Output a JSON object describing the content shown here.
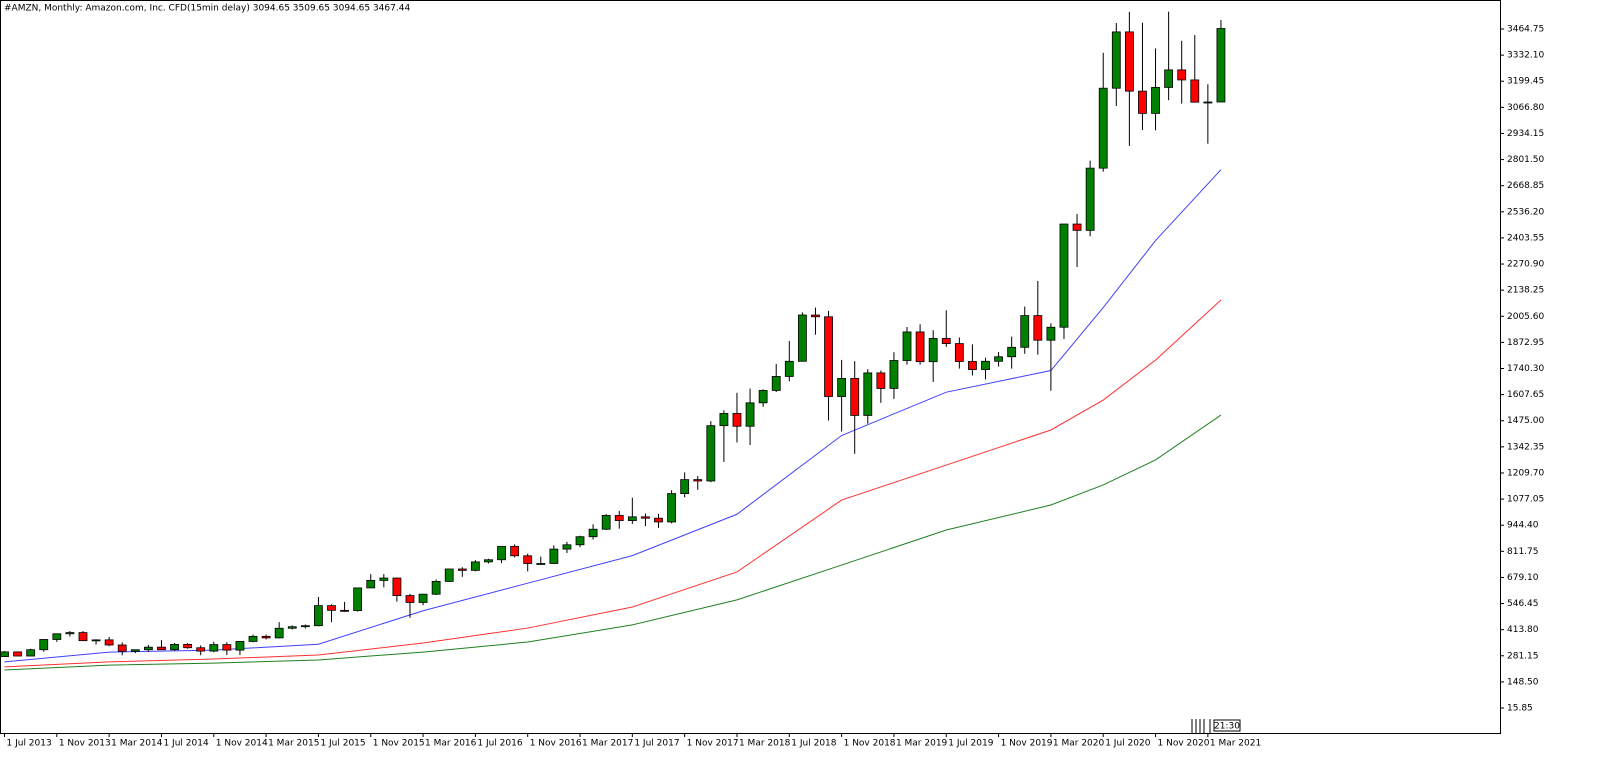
{
  "chart_data": {
    "type": "candlestick",
    "title": "#AMZN, Monthly:  Amazon.com, Inc. CFD(15min delay)  3094.65 3509.65 3094.65 3467.44",
    "timer": "21:30",
    "categories": [
      "1 Jul 2013",
      null,
      null,
      null,
      "1 Nov 2013",
      null,
      null,
      null,
      "1 Mar 2014",
      null,
      null,
      null,
      "1 Jul 2014",
      null,
      null,
      null,
      "1 Nov 2014",
      null,
      null,
      null,
      "1 Mar 2015",
      null,
      null,
      null,
      "1 Jul 2015",
      null,
      null,
      null,
      "1 Nov 2015",
      null,
      null,
      null,
      "1 Mar 2016",
      null,
      null,
      null,
      "1 Jul 2016",
      null,
      null,
      null,
      "1 Nov 2016",
      null,
      null,
      null,
      "1 Mar 2017",
      null,
      null,
      null,
      "1 Jul 2017",
      null,
      null,
      null,
      "1 Nov 2017",
      null,
      null,
      null,
      "1 Mar 2018",
      null,
      null,
      null,
      "1 Jul 2018",
      null,
      null,
      null,
      "1 Nov 2018",
      null,
      null,
      null,
      "1 Mar 2019",
      null,
      null,
      null,
      "1 Jul 2019",
      null,
      null,
      null,
      "1 Nov 2019",
      null,
      null,
      null,
      "1 Mar 2020",
      null,
      null,
      null,
      "1 Jul 2020",
      null,
      null,
      null,
      "1 Nov 2020",
      null,
      null,
      null,
      "1 Mar 2021",
      null
    ],
    "open": [
      277,
      301,
      280,
      312,
      364,
      393,
      399,
      358,
      362,
      336,
      304,
      312,
      325,
      312,
      339,
      322,
      305,
      338,
      310,
      354,
      380,
      372,
      421,
      429,
      434,
      536,
      512,
      511,
      626,
      664,
      676,
      587,
      552,
      594,
      659,
      722,
      715,
      758,
      769,
      837,
      789,
      750,
      750,
      823,
      845,
      886,
      924,
      994,
      968,
      987,
      980,
      961,
      1105,
      1176,
      1169,
      1450,
      1512,
      1447,
      1566,
      1629,
      1700,
      1777,
      2012,
      2003,
      1598,
      1690,
      1502,
      1718,
      1639,
      1781,
      1926,
      1775,
      1893,
      1867,
      1776,
      1735,
      1777,
      1800,
      1848,
      2009,
      1884,
      1950,
      2474,
      2442,
      2758,
      3164,
      3450,
      3149,
      3036,
      3168,
      3257,
      3206,
      3093,
      3094
    ],
    "high": [
      305,
      302,
      317,
      366,
      394,
      407,
      407,
      365,
      377,
      349,
      313,
      336,
      361,
      346,
      346,
      334,
      352,
      350,
      356,
      389,
      389,
      452,
      435,
      440,
      580,
      543,
      555,
      627,
      696,
      696,
      679,
      596,
      596,
      669,
      724,
      731,
      767,
      774,
      839,
      847,
      800,
      785,
      842,
      860,
      891,
      949,
      1001,
      1017,
      1084,
      1004,
      1002,
      1122,
      1213,
      1194,
      1473,
      1528,
      1617,
      1638,
      1635,
      1763,
      1880,
      2025,
      2050,
      2033,
      1784,
      1778,
      1737,
      1730,
      1823,
      1951,
      1965,
      1935,
      2036,
      1898,
      1863,
      1795,
      1824,
      1902,
      2055,
      2185,
      1970,
      2475,
      2525,
      2796,
      3344,
      3495,
      3552,
      3496,
      3366,
      3553,
      3405,
      3434,
      3184,
      3510
    ],
    "low": [
      276,
      279,
      280,
      302,
      352,
      379,
      356,
      338,
      330,
      284,
      295,
      301,
      311,
      307,
      317,
      284,
      299,
      285,
      285,
      350,
      364,
      369,
      415,
      420,
      431,
      452,
      504,
      506,
      625,
      629,
      556,
      474,
      538,
      590,
      656,
      682,
      710,
      750,
      752,
      781,
      710,
      742,
      747,
      803,
      833,
      872,
      920,
      927,
      951,
      940,
      931,
      954,
      1086,
      1124,
      1163,
      1266,
      1365,
      1352,
      1546,
      1621,
      1675,
      1776,
      1912,
      1476,
      1420,
      1307,
      1460,
      1566,
      1586,
      1760,
      1760,
      1672,
      1850,
      1740,
      1705,
      1685,
      1750,
      1740,
      1815,
      1811,
      1627,
      1890,
      2256,
      2412,
      2740,
      3074,
      2871,
      2951,
      2950,
      3103,
      3086,
      3091,
      2882,
      3094
    ],
    "close": [
      301,
      280,
      312,
      364,
      393,
      399,
      358,
      362,
      336,
      304,
      312,
      325,
      312,
      339,
      322,
      305,
      338,
      310,
      354,
      380,
      372,
      421,
      429,
      434,
      536,
      512,
      511,
      626,
      664,
      676,
      587,
      552,
      594,
      659,
      722,
      715,
      758,
      769,
      837,
      789,
      750,
      750,
      823,
      845,
      886,
      924,
      994,
      968,
      987,
      980,
      961,
      1105,
      1176,
      1169,
      1450,
      1512,
      1447,
      1566,
      1629,
      1700,
      1777,
      2012,
      2003,
      1598,
      1690,
      1502,
      1718,
      1639,
      1781,
      1926,
      1775,
      1893,
      1867,
      1776,
      1735,
      1777,
      1800,
      1848,
      2009,
      1884,
      1950,
      2474,
      2442,
      2758,
      3164,
      3450,
      3149,
      3036,
      3168,
      3257,
      3206,
      3093,
      3094,
      3467
    ],
    "up_color": "#008000",
    "down_color": "#ff0000",
    "series": [
      {
        "color": "#4040ff",
        "x": [
          0,
          8,
          16,
          24,
          32,
          40,
          48,
          56,
          64,
          72,
          80,
          84,
          88,
          93
        ],
        "values": [
          250,
          300,
          310,
          340,
          510,
          650,
          790,
          1000,
          1400,
          1620,
          1730,
          2050,
          2390,
          2750
        ]
      },
      {
        "color": "#ff3030",
        "x": [
          0,
          8,
          16,
          24,
          32,
          40,
          48,
          56,
          64,
          72,
          80,
          84,
          88,
          93
        ],
        "values": [
          225,
          250,
          265,
          285,
          346,
          422,
          529,
          707,
          1072,
          1250,
          1428,
          1580,
          1783,
          2088
        ]
      },
      {
        "color": "#208020",
        "x": [
          0,
          8,
          16,
          24,
          32,
          40,
          48,
          56,
          64,
          72,
          80,
          84,
          88,
          93
        ],
        "values": [
          209,
          234,
          244,
          260,
          300,
          351,
          438,
          565,
          742,
          920,
          1047,
          1149,
          1276,
          1504
        ]
      }
    ],
    "ylim": [
      -111,
      3612
    ],
    "yticks": [
      15.85,
      {
        "value": 148.5,
        "label": "148.50"
      },
      281.15,
      {
        "value": 413.8,
        "label": "413.80"
      },
      546.45,
      {
        "value": 679.1,
        "label": "679.10"
      },
      811.75,
      {
        "value": 944.4,
        "label": "944.40"
      },
      1077.05,
      {
        "value": 1209.7,
        "label": "1209.70"
      },
      1342.35,
      {
        "value": 1475,
        "label": "1475.00"
      },
      1607.65,
      {
        "value": 1740.3,
        "label": "1740.30"
      },
      1872.95,
      {
        "value": 2005.6,
        "label": "2005.60"
      },
      2138.25,
      {
        "value": 2270.9,
        "label": "2270.90"
      },
      2403.55,
      {
        "value": 2536.2,
        "label": "2536.20"
      },
      2668.85,
      {
        "value": 2801.5,
        "label": "2801.50"
      },
      2934.15,
      {
        "value": 3066.8,
        "label": "3066.80"
      },
      3199.45,
      {
        "value": 3332.1,
        "label": "3332.10"
      },
      3464.75
    ]
  }
}
